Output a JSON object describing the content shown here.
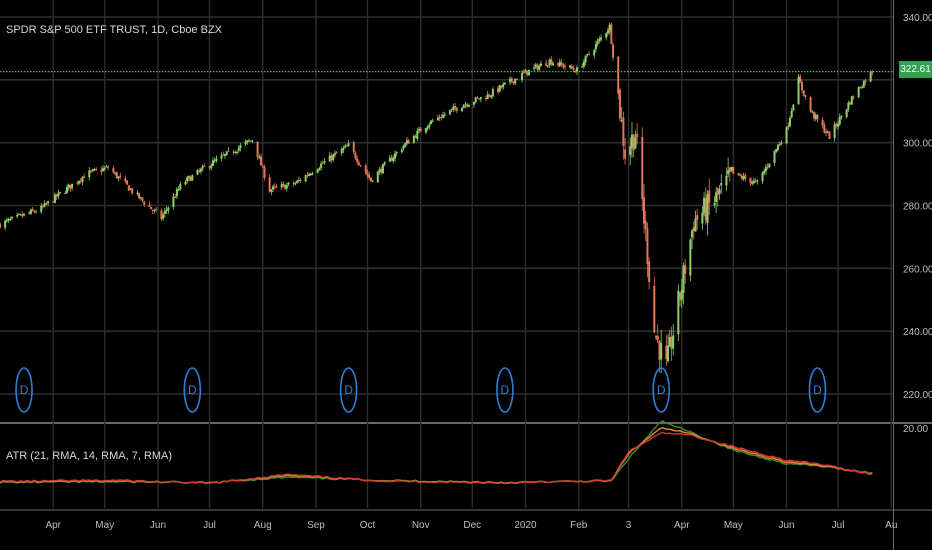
{
  "title": "SPDR S&P 500 ETF TRUST, 1D, Cboe BZX",
  "current_price_label": "322.61",
  "colors": {
    "background": "#000000",
    "grid": "#2e2e2e",
    "axis_text": "#bdbdbd",
    "up": "#8fd16a",
    "down": "#e0785a",
    "price_line": "#43b949",
    "dividend": "#2f7fd6",
    "atr_21": "#3d8a2c",
    "atr_14": "#e08a2a",
    "atr_7": "#d13a3a"
  },
  "chart_data": [
    {
      "type": "candlestick",
      "title": "SPDR S&P 500 ETF TRUST, 1D, Cboe BZX",
      "y_ticks": [
        220,
        240,
        260,
        280,
        300,
        320,
        340
      ],
      "y_tick_labels": [
        "220.00",
        "240.00",
        "260.00",
        "280.00",
        "300.00",
        "",
        "340.00"
      ],
      "ylim": [
        213,
        343
      ],
      "last_price": 322.61,
      "x_month_labels": [
        "Apr",
        "May",
        "Jun",
        "Jul",
        "Aug",
        "Sep",
        "Oct",
        "Nov",
        "Dec",
        "2020",
        "Feb",
        "3",
        "Apr",
        "May",
        "Jun",
        "Jul",
        "Au"
      ],
      "dividend_marker": "D",
      "dividend_dates": [
        "2019-03-15",
        "2019-06-21",
        "2019-09-20",
        "2019-12-20",
        "2020-03-20",
        "2020-06-19"
      ],
      "close_path": {
        "dates": [
          "2019-03-01",
          "2019-03-25",
          "2019-04-20",
          "2019-05-03",
          "2019-05-20",
          "2019-06-03",
          "2019-06-15",
          "2019-07-01",
          "2019-07-26",
          "2019-08-05",
          "2019-08-20",
          "2019-09-01",
          "2019-09-20",
          "2019-10-03",
          "2019-10-20",
          "2019-11-05",
          "2019-11-25",
          "2019-12-10",
          "2019-12-31",
          "2020-01-15",
          "2020-01-31",
          "2020-02-19",
          "2020-02-28",
          "2020-03-05",
          "2020-03-12",
          "2020-03-16",
          "2020-03-23",
          "2020-04-08",
          "2020-04-21",
          "2020-05-01",
          "2020-05-15",
          "2020-06-01",
          "2020-06-08",
          "2020-06-15",
          "2020-06-26",
          "2020-07-10",
          "2020-07-21"
        ],
        "values": [
          274,
          279,
          290,
          292,
          283,
          276,
          287,
          293,
          301,
          285,
          287,
          292,
          299,
          288,
          298,
          306,
          312,
          315,
          322,
          326,
          323,
          337,
          297,
          303,
          265,
          240,
          228,
          275,
          282,
          290,
          287,
          304,
          320,
          310,
          302,
          315,
          323
        ]
      }
    },
    {
      "type": "line",
      "title": "ATR (21, RMA, 14, RMA, 7, RMA)",
      "y_tick_labels": [
        "20.00"
      ],
      "series": [
        {
          "name": "",
          "color": "#3d8a2c",
          "x": [
            "2019-03-01",
            "2019-05-10",
            "2019-07-01",
            "2019-08-15",
            "2019-10-10",
            "2019-12-20",
            "2020-02-20",
            "2020-03-01",
            "2020-03-20",
            "2020-04-05",
            "2020-05-01",
            "2020-06-01",
            "2020-06-20",
            "2020-07-21"
          ],
          "values": [
            4.0,
            4.2,
            3.9,
            5.5,
            4.6,
            4.0,
            4.4,
            11.0,
            22.0,
            19.0,
            13.5,
            9.5,
            8.8,
            6.8
          ]
        },
        {
          "name": "",
          "color": "#e08a2a",
          "x": [
            "2019-03-01",
            "2019-05-10",
            "2019-07-01",
            "2019-08-15",
            "2019-10-10",
            "2019-12-20",
            "2020-02-20",
            "2020-03-01",
            "2020-03-20",
            "2020-04-05",
            "2020-05-01",
            "2020-06-01",
            "2020-06-20",
            "2020-07-21"
          ],
          "values": [
            4.1,
            4.4,
            3.8,
            6.0,
            4.5,
            3.9,
            4.5,
            12.5,
            20.0,
            18.5,
            14.0,
            10.0,
            9.0,
            6.5
          ]
        },
        {
          "name": "",
          "color": "#d13a3a",
          "x": [
            "2019-03-01",
            "2019-05-10",
            "2019-07-01",
            "2019-08-15",
            "2019-10-10",
            "2019-12-20",
            "2020-02-20",
            "2020-03-01",
            "2020-03-20",
            "2020-04-05",
            "2020-05-01",
            "2020-06-01",
            "2020-06-20",
            "2020-07-21"
          ],
          "values": [
            4.3,
            4.6,
            3.7,
            6.3,
            4.4,
            3.8,
            4.6,
            13.0,
            18.5,
            18.0,
            14.5,
            10.5,
            9.4,
            6.4
          ]
        }
      ]
    }
  ]
}
